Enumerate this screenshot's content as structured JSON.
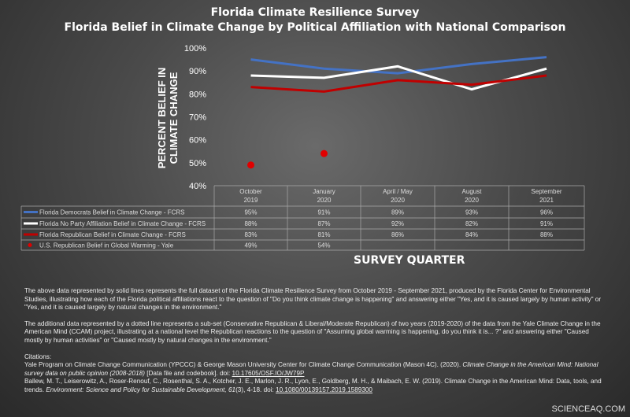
{
  "chart_data": {
    "type": "line",
    "title": "Florida Climate Resilience Survey",
    "subtitle": "Florida Belief in Climate Change by Political Affiliation with National Comparison",
    "xlabel": "SURVEY QUARTER",
    "ylabel": "PERCENT BELIEF IN CLIMATE CHANGE",
    "ylim": [
      40,
      100
    ],
    "yticks": [
      "40%",
      "50%",
      "60%",
      "70%",
      "80%",
      "90%",
      "100%"
    ],
    "categories": [
      [
        "October",
        "2019"
      ],
      [
        "January",
        "2020"
      ],
      [
        "April / May",
        "2020"
      ],
      [
        "August",
        "2020"
      ],
      [
        "September",
        "2021"
      ]
    ],
    "series": [
      {
        "name": "Florida Democrats Belief in Climate Change - FCRS",
        "style": "line",
        "color": "#4472c4",
        "values": [
          95,
          91,
          89,
          93,
          96
        ],
        "labels": [
          "95%",
          "91%",
          "89%",
          "93%",
          "96%"
        ]
      },
      {
        "name": "Florida No Party Affiliation Belief in Climate Change - FCRS",
        "style": "line",
        "color": "#ffffff",
        "values": [
          88,
          87,
          92,
          82,
          91
        ],
        "labels": [
          "88%",
          "87%",
          "92%",
          "82%",
          "91%"
        ]
      },
      {
        "name": "Florida Republican Belief in Climate Change - FCRS",
        "style": "line",
        "color": "#c00000",
        "values": [
          83,
          81,
          86,
          84,
          88
        ],
        "labels": [
          "83%",
          "81%",
          "86%",
          "84%",
          "88%"
        ]
      },
      {
        "name": "U.S. Republican Belief in Global Warming - Yale",
        "style": "marker",
        "color": "#e00000",
        "values": [
          49,
          54,
          null,
          null,
          null
        ],
        "labels": [
          "49%",
          "54%",
          "",
          "",
          ""
        ]
      }
    ],
    "grid": false,
    "legend": "data table below chart"
  },
  "notes": {
    "p1": "The above data represented by solid lines represents the full dataset of the Florida Climate Resilience Survey from October 2019 - September 2021, produced by the Florida Center for Environmental Studies, illustrating how each of the Florida political affiliations react to the question of \"Do you think climate change is happening\" and answering either \"Yes, and it is caused largely by human activity\" or \"Yes, and it is caused largely by natural changes in the environment.\"",
    "p2": "The additional data represented by a dotted line represents a sub-set (Conservative Republican & Liberal/Moderate Republican) of two years (2019-2020) of the data from the Yale Climate Change in the American Mind (CCAM) project, illustrating at a national level the Republican reactions to the question of \"Assuming global warming is happening, do you think it is... ?\" and answering either \"Caused mostly by human activities\" or \"Caused mostly by natural changes in the environment.\"",
    "citations_label": "Citations:",
    "c1a": "Yale Program on Climate Change Communication (YPCCC) & George Mason University Center for Climate Change Communication (Mason 4C). (2020). ",
    "c1b": "Climate Change in the American Mind: National survey data on public opinion (2008-2018)",
    "c1c": " [Data file and codebook]. doi: ",
    "c1d": "10.17605/OSF.IO/JW79P",
    "c2a": "Ballew, M. T., Leiserowitz, A., Roser-Renouf, C., Rosenthal, S. A., Kotcher, J. E., Marlon, J. R., Lyon, E., Goldberg, M. H., & Maibach, E. W. (2019). Climate Change in the American Mind: Data, tools, and trends. ",
    "c2b": "Environment: Science and Policy for Sustainable Development, 61",
    "c2c": "(3), 4-18. doi: ",
    "c2d": "10.1080/00139157.2019.1589300"
  },
  "watermark": "SCIENCEAQ.COM"
}
